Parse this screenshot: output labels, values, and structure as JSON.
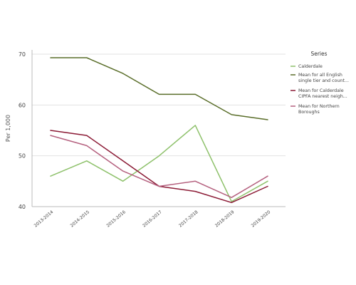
{
  "chart_data": {
    "type": "line",
    "categories": [
      "2013-2014",
      "2014-2015",
      "2015-2016",
      "2016-2017",
      "2017-2018",
      "2018-2019",
      "2019-2020"
    ],
    "ylabel": "Per 1,000",
    "ylim": [
      40,
      70
    ],
    "yticks": [
      "40",
      "50",
      "60",
      "70"
    ],
    "grid": true,
    "legend_title": "Series",
    "legend_position": "right",
    "series": [
      {
        "name": "Calderdale",
        "legend_lines": [
          "Calderdale"
        ],
        "color": "#8ec16b",
        "values": [
          46,
          49,
          45,
          50,
          56,
          41,
          45
        ]
      },
      {
        "name": "Mean for all English single tier and count...",
        "legend_lines": [
          "Mean for all English",
          "single tier and count..."
        ],
        "color": "#5a6e2a",
        "values": [
          69.3,
          69.3,
          66.2,
          62.1,
          62.1,
          58.1,
          57.1
        ]
      },
      {
        "name": "Mean for Calderdale CIPFA nearest neigh...",
        "legend_lines": [
          "Mean for Calderdale",
          "CIPFA nearest neigh..."
        ],
        "color": "#8b1a35",
        "values": [
          55,
          54,
          49,
          44,
          43,
          40.8,
          44
        ]
      },
      {
        "name": "Mean for Northern Boroughs",
        "legend_lines": [
          "Mean for Northern",
          "Boroughs"
        ],
        "color": "#b5617f",
        "values": [
          54,
          52,
          47,
          44,
          45,
          41.8,
          46
        ]
      }
    ]
  }
}
